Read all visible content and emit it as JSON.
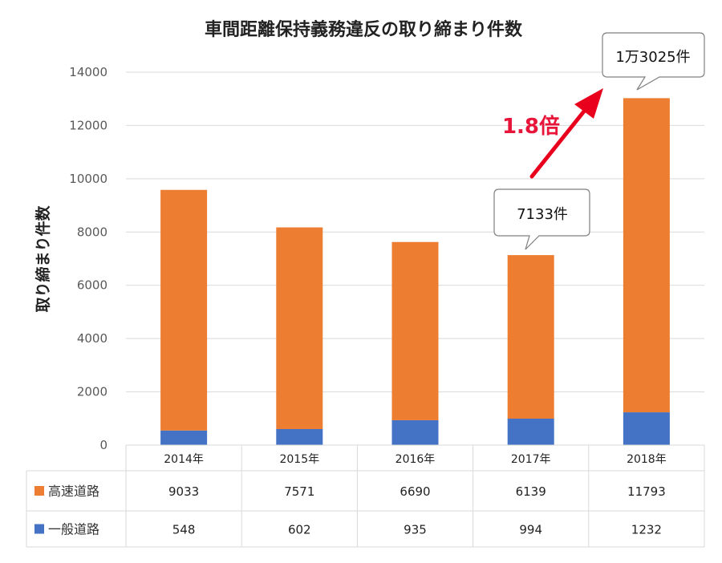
{
  "chart_data": {
    "type": "bar",
    "stacked": true,
    "title": "車間距離保持義務違反の取り締まり件数",
    "xlabel": "",
    "ylabel": "取り締まり件数",
    "ylim": [
      0,
      14000
    ],
    "yticks": [
      "0",
      "2000",
      "4000",
      "6000",
      "8000",
      "10000",
      "12000",
      "14000"
    ],
    "grid": true,
    "categories": [
      "2014年",
      "2015年",
      "2016年",
      "2017年",
      "2018年"
    ],
    "series": [
      {
        "name": "一般道路",
        "color": "#4472c4",
        "values": [
          548,
          602,
          935,
          994,
          1232
        ]
      },
      {
        "name": "高速道路",
        "color": "#ed7d31",
        "values": [
          9033,
          7571,
          6690,
          6139,
          11793
        ]
      }
    ],
    "table_rows": [
      {
        "label": "高速道路",
        "color": "#ed7d31",
        "values": [
          "9033",
          "7571",
          "6690",
          "6139",
          "11793"
        ]
      },
      {
        "label": "一般道路",
        "color": "#4472c4",
        "values": [
          "548",
          "602",
          "935",
          "994",
          "1232"
        ]
      }
    ],
    "annotations": {
      "callout_2017": "7133件",
      "callout_2018": "1万3025件",
      "multiplier": "1.8倍",
      "arrow_color": "#e8001c"
    }
  }
}
